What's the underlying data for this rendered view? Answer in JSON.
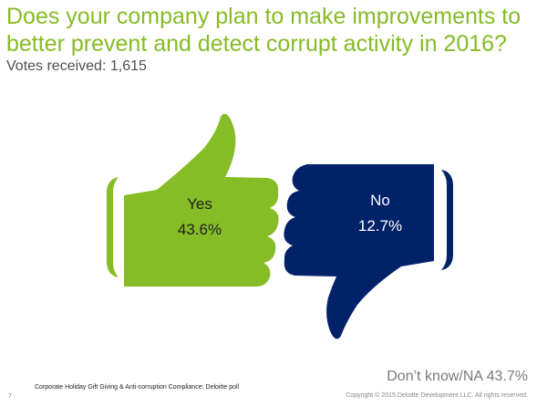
{
  "title": "Does your company plan to make improvements to better prevent and detect corrupt activity in 2016?",
  "votes_label": "Votes received: 1,615",
  "results": {
    "yes": {
      "label": "Yes",
      "value": "43.6%"
    },
    "no": {
      "label": "No",
      "value": "12.7%"
    },
    "dont_know": "Don’t know/NA  43.7%"
  },
  "footer": {
    "page_number": "7",
    "source": "Corporate Holiday Gift Giving & Anti-corruption Compliance: Deloitte poll",
    "copyright": "Copyright © 2015 Deloitte Development LLC. All rights reserved."
  },
  "colors": {
    "title": "#86bc25",
    "thumbs_up": "#86bc25",
    "thumbs_down": "#012169"
  }
}
